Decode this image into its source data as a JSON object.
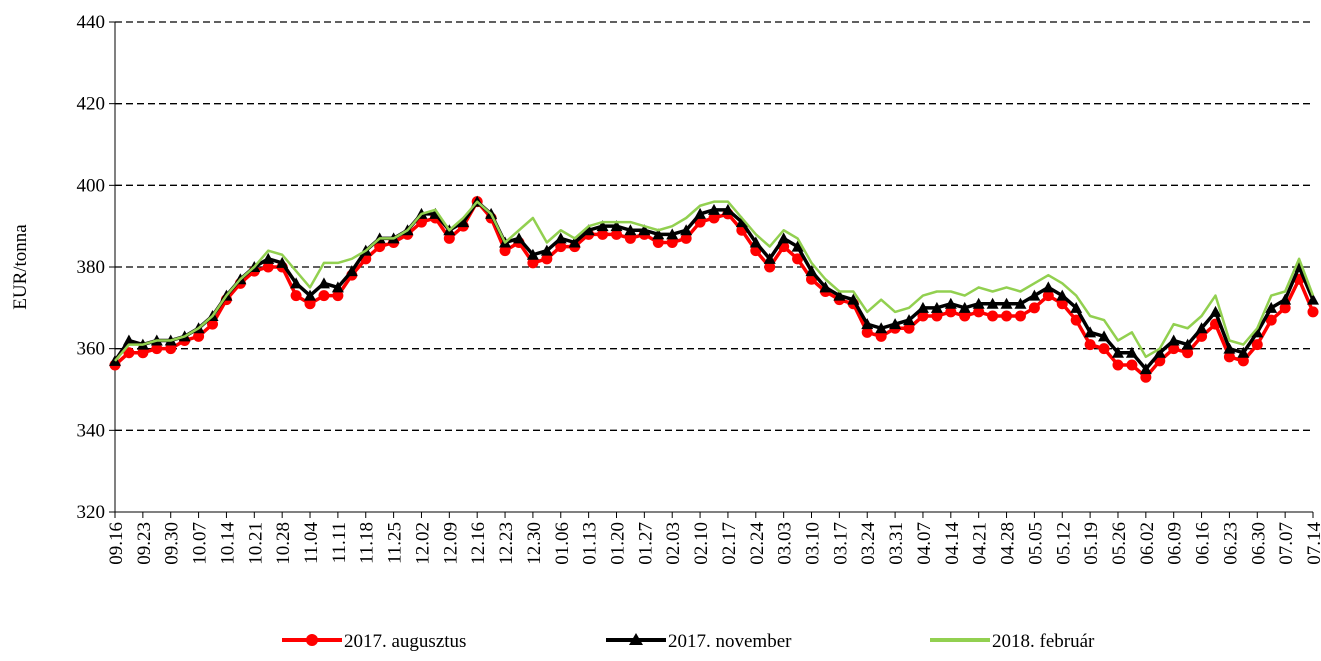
{
  "chart_data": {
    "type": "line",
    "y_label": "EUR/tonna",
    "categories": [
      "09.16",
      null,
      "09.23",
      null,
      "09.30",
      null,
      "10.07",
      null,
      "10.14",
      null,
      "10.21",
      null,
      "10.28",
      null,
      "11.04",
      null,
      "11.11",
      null,
      "11.18",
      null,
      "11.25",
      null,
      "12.02",
      null,
      "12.09",
      null,
      "12.16",
      null,
      "12.23",
      null,
      "12.30",
      null,
      "01.06",
      null,
      "01.13",
      null,
      "01.20",
      null,
      "01.27",
      null,
      "02.03",
      null,
      "02.10",
      null,
      "02.17",
      null,
      "02.24",
      null,
      "03.03",
      null,
      "03.10",
      null,
      "03.17",
      null,
      "03.24",
      null,
      "03.31",
      null,
      "04.07",
      null,
      "04.14",
      null,
      "04.21",
      null,
      "04.28",
      null,
      "05.05",
      null,
      "05.12",
      null,
      "05.19",
      null,
      "05.26",
      null,
      "06.02",
      null,
      "06.09",
      null,
      "06.16",
      null,
      "06.23",
      null,
      "06.30",
      null,
      "07.07",
      null,
      "07.14"
    ],
    "series": [
      {
        "name": "2017. augusztus",
        "color": "#ff0000",
        "marker": "circle",
        "values": [
          356,
          359,
          359,
          360,
          360,
          362,
          363,
          366,
          372,
          376,
          379,
          380,
          380,
          373,
          371,
          373,
          373,
          378,
          382,
          385,
          386,
          388,
          391,
          392,
          387,
          390,
          396,
          392,
          384,
          386,
          381,
          382,
          385,
          385,
          388,
          388,
          388,
          387,
          388,
          386,
          386,
          387,
          391,
          392,
          393,
          389,
          384,
          380,
          385,
          382,
          377,
          374,
          372,
          371,
          364,
          363,
          365,
          365,
          368,
          368,
          369,
          368,
          369,
          368,
          368,
          368,
          370,
          373,
          371,
          367,
          361,
          360,
          356,
          356,
          353,
          357,
          360,
          359,
          363,
          366,
          358,
          357,
          361,
          367,
          370,
          377,
          369
        ]
      },
      {
        "name": "2017. november",
        "color": "#000000",
        "marker": "triangle",
        "values": [
          357,
          362,
          361,
          362,
          362,
          363,
          365,
          368,
          373,
          377,
          380,
          382,
          381,
          376,
          373,
          376,
          375,
          379,
          384,
          387,
          387,
          389,
          393,
          393,
          389,
          391,
          396,
          393,
          386,
          387,
          383,
          384,
          387,
          386,
          389,
          390,
          390,
          389,
          389,
          388,
          388,
          389,
          393,
          394,
          394,
          391,
          386,
          382,
          387,
          385,
          379,
          375,
          373,
          372,
          366,
          365,
          366,
          367,
          370,
          370,
          371,
          370,
          371,
          371,
          371,
          371,
          373,
          375,
          373,
          370,
          364,
          363,
          359,
          359,
          355,
          359,
          362,
          361,
          365,
          369,
          360,
          359,
          364,
          370,
          372,
          380,
          372
        ]
      },
      {
        "name": "2018. február",
        "color": "#92d050",
        "marker": "none",
        "values": [
          357,
          361,
          361,
          362,
          362,
          363,
          365,
          368,
          373,
          377,
          380,
          384,
          383,
          379,
          375,
          381,
          381,
          382,
          384,
          387,
          387,
          389,
          393,
          394,
          389,
          392,
          396,
          393,
          386,
          389,
          392,
          386,
          389,
          387,
          390,
          391,
          391,
          391,
          390,
          389,
          390,
          392,
          395,
          396,
          396,
          392,
          388,
          385,
          389,
          387,
          381,
          377,
          374,
          374,
          369,
          372,
          369,
          370,
          373,
          374,
          374,
          373,
          375,
          374,
          375,
          374,
          376,
          378,
          376,
          373,
          368,
          367,
          362,
          364,
          358,
          360,
          366,
          365,
          368,
          373,
          362,
          361,
          365,
          373,
          374,
          382,
          373
        ]
      }
    ],
    "ylim": [
      320,
      440
    ],
    "yticks": [
      320,
      340,
      360,
      380,
      400,
      420,
      440
    ],
    "grid": true,
    "legend": "bottom"
  }
}
